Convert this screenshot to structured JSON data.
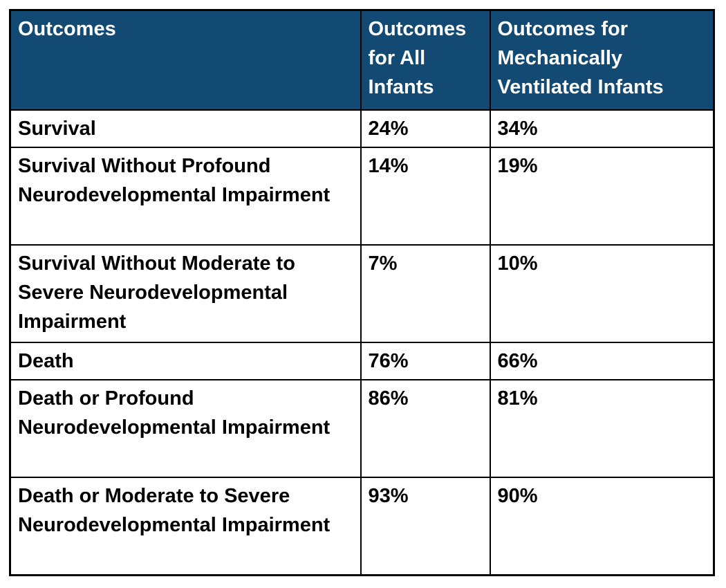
{
  "chart_data": {
    "type": "table",
    "columns": [
      "Outcomes",
      "Outcomes for All Infants",
      "Outcomes for Mechanically Ventilated Infants"
    ],
    "rows": [
      [
        "Survival",
        "24%",
        "34%"
      ],
      [
        "Survival Without Profound Neurodevelopmental Impairment",
        "14%",
        "19%"
      ],
      [
        "Survival Without Moderate to Severe Neurodevelopmental Impairment",
        "7%",
        "10%"
      ],
      [
        "Death",
        "76%",
        "66%"
      ],
      [
        "Death or Profound Neurodevelopmental Impairment",
        "86%",
        "81%"
      ],
      [
        "Death or Moderate to Severe Neurodevelopmental Impairment",
        "93%",
        "90%"
      ]
    ],
    "layout": {
      "grid": "on",
      "header_position": "top"
    }
  },
  "colors": {
    "header_bg": "#134A73",
    "header_text": "#FFFFFF",
    "body_text": "#000000",
    "border": "#000000",
    "background": "#FFFFFF"
  }
}
